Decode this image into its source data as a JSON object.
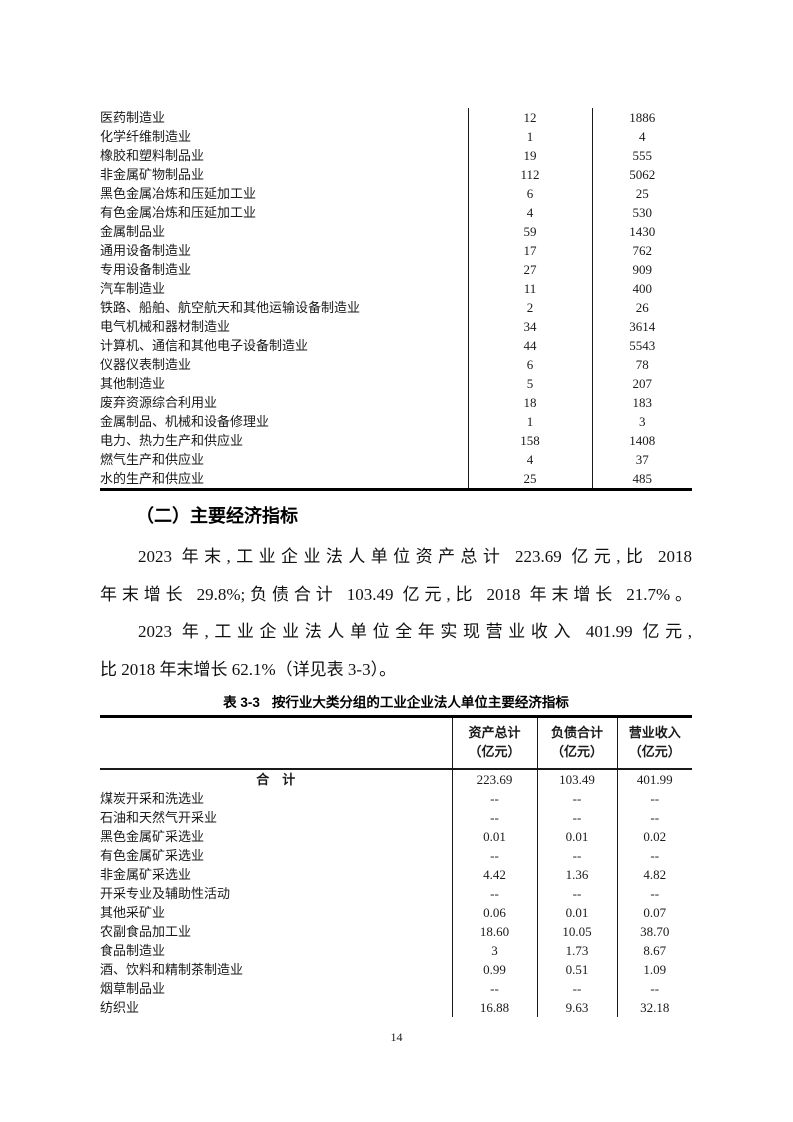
{
  "page_number": "14",
  "continued_table": {
    "rows": [
      {
        "label": "医药制造业",
        "values": [
          "12",
          "1886"
        ]
      },
      {
        "label": "化学纤维制造业",
        "values": [
          "1",
          "4"
        ]
      },
      {
        "label": "橡胶和塑料制品业",
        "values": [
          "19",
          "555"
        ]
      },
      {
        "label": "非金属矿物制品业",
        "values": [
          "112",
          "5062"
        ]
      },
      {
        "label": "黑色金属冶炼和压延加工业",
        "values": [
          "6",
          "25"
        ]
      },
      {
        "label": "有色金属冶炼和压延加工业",
        "values": [
          "4",
          "530"
        ]
      },
      {
        "label": "金属制品业",
        "values": [
          "59",
          "1430"
        ]
      },
      {
        "label": "通用设备制造业",
        "values": [
          "17",
          "762"
        ]
      },
      {
        "label": "专用设备制造业",
        "values": [
          "27",
          "909"
        ]
      },
      {
        "label": "汽车制造业",
        "values": [
          "11",
          "400"
        ]
      },
      {
        "label": "铁路、船舶、航空航天和其他运输设备制造业",
        "values": [
          "2",
          "26"
        ]
      },
      {
        "label": "电气机械和器材制造业",
        "values": [
          "34",
          "3614"
        ]
      },
      {
        "label": "计算机、通信和其他电子设备制造业",
        "values": [
          "44",
          "5543"
        ]
      },
      {
        "label": "仪器仪表制造业",
        "values": [
          "6",
          "78"
        ]
      },
      {
        "label": "其他制造业",
        "values": [
          "5",
          "207"
        ]
      },
      {
        "label": "废弃资源综合利用业",
        "values": [
          "18",
          "183"
        ]
      },
      {
        "label": "金属制品、机械和设备修理业",
        "values": [
          "1",
          "3"
        ]
      },
      {
        "label": "电力、热力生产和供应业",
        "values": [
          "158",
          "1408"
        ]
      },
      {
        "label": "燃气生产和供应业",
        "values": [
          "4",
          "37"
        ]
      },
      {
        "label": "水的生产和供应业",
        "values": [
          "25",
          "485"
        ]
      }
    ]
  },
  "section": {
    "heading": "（二）主要经济指标"
  },
  "paragraphs": [
    {
      "lines": [
        "2023 年末,工业企业法人单位资产总计 223.69 亿元,比 2018",
        "年末增长 29.8%;负债合计 103.49 亿元,比 2018 年末增长 21.7%。"
      ]
    },
    {
      "lines": [
        "2023 年,工业企业法人单位全年实现营业收入 401.99 亿元,",
        "比 2018 年末增长 62.1%（详见表 3-3）。"
      ]
    }
  ],
  "table3": {
    "caption_label": "表 3-3",
    "caption_title": "按行业大类分组的工业企业法人单位主要经济指标",
    "headers": [
      {
        "line1": "资产总计",
        "line2": "（亿元）"
      },
      {
        "line1": "负债合计",
        "line2": "（亿元）"
      },
      {
        "line1": "营业收入",
        "line2": "（亿元）"
      }
    ],
    "total_row": {
      "label": "合　计",
      "values": [
        "223.69",
        "103.49",
        "401.99"
      ]
    },
    "rows": [
      {
        "label": "煤炭开采和洗选业",
        "values": [
          "--",
          "--",
          "--"
        ]
      },
      {
        "label": "石油和天然气开采业",
        "values": [
          "--",
          "--",
          "--"
        ]
      },
      {
        "label": "黑色金属矿采选业",
        "values": [
          "0.01",
          "0.01",
          "0.02"
        ]
      },
      {
        "label": "有色金属矿采选业",
        "values": [
          "--",
          "--",
          "--"
        ]
      },
      {
        "label": "非金属矿采选业",
        "values": [
          "4.42",
          "1.36",
          "4.82"
        ]
      },
      {
        "label": "开采专业及辅助性活动",
        "values": [
          "--",
          "--",
          "--"
        ]
      },
      {
        "label": "其他采矿业",
        "values": [
          "0.06",
          "0.01",
          "0.07"
        ]
      },
      {
        "label": "农副食品加工业",
        "values": [
          "18.60",
          "10.05",
          "38.70"
        ]
      },
      {
        "label": "食品制造业",
        "values": [
          "3",
          "1.73",
          "8.67"
        ]
      },
      {
        "label": "酒、饮料和精制茶制造业",
        "values": [
          "0.99",
          "0.51",
          "1.09"
        ]
      },
      {
        "label": "烟草制品业",
        "values": [
          "--",
          "--",
          "--"
        ]
      },
      {
        "label": "纺织业",
        "values": [
          "16.88",
          "9.63",
          "32.18"
        ]
      }
    ]
  }
}
